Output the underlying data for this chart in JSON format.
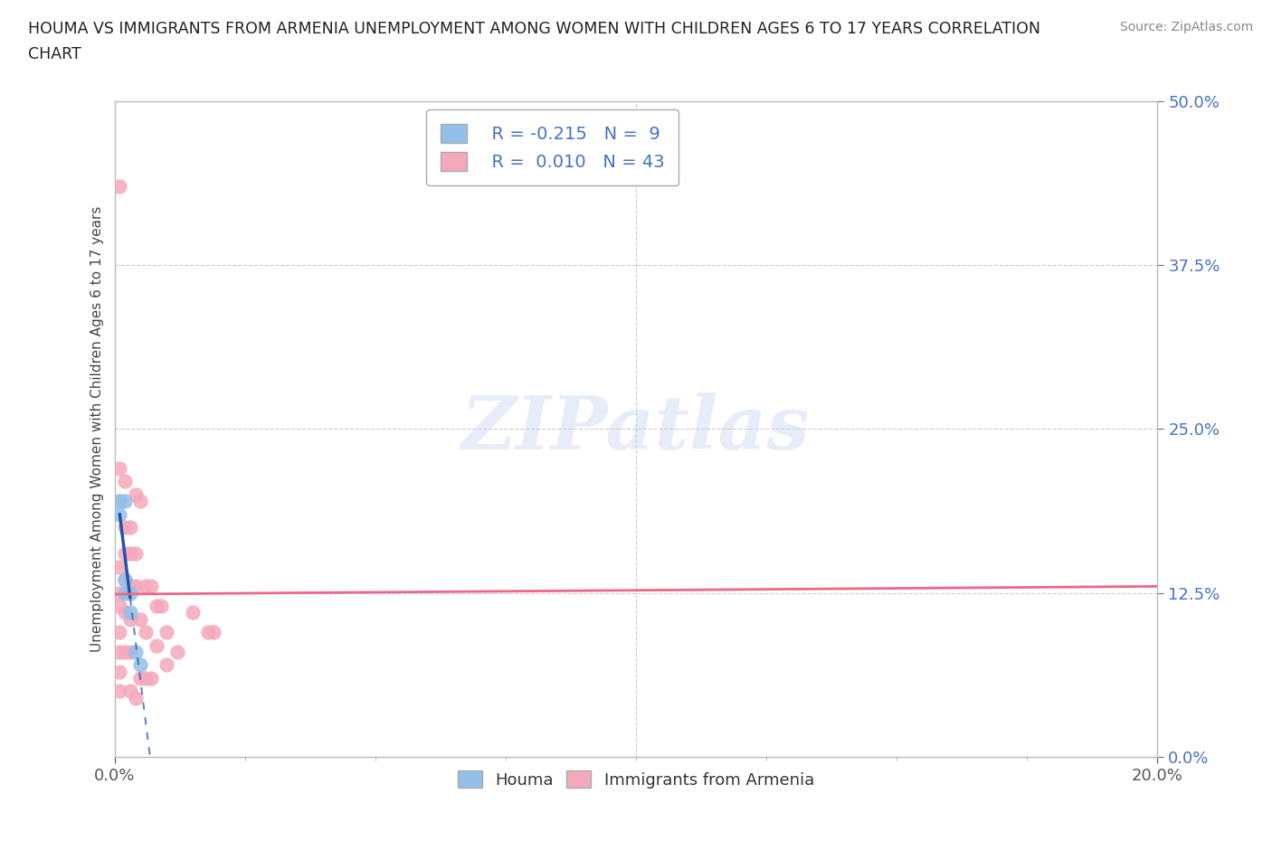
{
  "title_line1": "HOUMA VS IMMIGRANTS FROM ARMENIA UNEMPLOYMENT AMONG WOMEN WITH CHILDREN AGES 6 TO 17 YEARS CORRELATION",
  "title_line2": "CHART",
  "source": "Source: ZipAtlas.com",
  "watermark": "ZIPatlas",
  "houma_color": "#92c0e8",
  "armenia_color": "#f4a8bb",
  "trend_houma_color": "#2255aa",
  "trend_armenia_color": "#ee6688",
  "houma_x": [
    0.001,
    0.001,
    0.002,
    0.002,
    0.002,
    0.003,
    0.003,
    0.004,
    0.005
  ],
  "houma_y": [
    0.195,
    0.185,
    0.195,
    0.135,
    0.125,
    0.125,
    0.11,
    0.08,
    0.07
  ],
  "armenia_x": [
    0.001,
    0.001,
    0.001,
    0.001,
    0.001,
    0.001,
    0.001,
    0.001,
    0.001,
    0.001,
    0.002,
    0.002,
    0.002,
    0.002,
    0.002,
    0.002,
    0.003,
    0.003,
    0.003,
    0.003,
    0.003,
    0.003,
    0.004,
    0.004,
    0.004,
    0.004,
    0.005,
    0.005,
    0.005,
    0.006,
    0.006,
    0.006,
    0.007,
    0.007,
    0.008,
    0.008,
    0.009,
    0.01,
    0.01,
    0.012,
    0.015,
    0.018,
    0.019
  ],
  "armenia_y": [
    0.435,
    0.22,
    0.195,
    0.145,
    0.125,
    0.115,
    0.095,
    0.08,
    0.065,
    0.05,
    0.21,
    0.175,
    0.155,
    0.135,
    0.11,
    0.08,
    0.175,
    0.155,
    0.13,
    0.105,
    0.08,
    0.05,
    0.2,
    0.155,
    0.13,
    0.045,
    0.195,
    0.105,
    0.06,
    0.13,
    0.095,
    0.06,
    0.13,
    0.06,
    0.115,
    0.085,
    0.115,
    0.095,
    0.07,
    0.08,
    0.11,
    0.095,
    0.095
  ],
  "xlim": [
    0.0,
    0.2
  ],
  "ylim": [
    0.0,
    0.5
  ],
  "yticks": [
    0.0,
    0.125,
    0.25,
    0.375,
    0.5
  ],
  "xticks": [
    0.0,
    0.2
  ],
  "figsize": [
    14.06,
    9.3
  ],
  "dpi": 100
}
